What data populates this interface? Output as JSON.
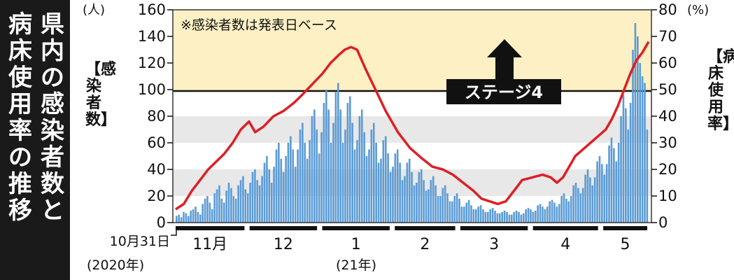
{
  "title": {
    "col1": "県内の感染者数と",
    "col2": "病床使用率の推移"
  },
  "left_axis": {
    "unit": "(人)",
    "label": "【感染者数】"
  },
  "right_axis": {
    "unit": "(%)",
    "label": "【病床使用率】"
  },
  "note": "※感染者数は発表日ベース",
  "stage_label": "ステージ4",
  "x_axis": {
    "start_label": "10月31日",
    "start_year": "(2020年)",
    "year_label": "(21年)",
    "months": [
      "11月",
      "12",
      "1",
      "2",
      "3",
      "4",
      "5"
    ]
  },
  "chart_data": {
    "type": "bar+line",
    "x": {
      "start": "2020-10-31",
      "end": "2021-05-21"
    },
    "series": [
      {
        "name": "感染者数",
        "type": "bar",
        "axis": "left",
        "color": "#5b9bd5",
        "values": [
          5,
          6,
          4,
          8,
          7,
          5,
          9,
          10,
          12,
          8,
          6,
          14,
          18,
          20,
          15,
          10,
          22,
          25,
          28,
          18,
          15,
          24,
          30,
          26,
          20,
          18,
          28,
          32,
          35,
          25,
          22,
          30,
          38,
          40,
          32,
          28,
          35,
          45,
          50,
          40,
          30,
          42,
          55,
          60,
          48,
          38,
          50,
          60,
          65,
          55,
          42,
          55,
          70,
          75,
          60,
          48,
          62,
          80,
          85,
          70,
          52,
          68,
          90,
          100,
          85,
          60,
          75,
          98,
          105,
          85,
          60,
          70,
          90,
          95,
          75,
          55,
          62,
          80,
          85,
          68,
          50,
          55,
          70,
          75,
          60,
          45,
          48,
          62,
          65,
          52,
          38,
          42,
          52,
          55,
          45,
          32,
          35,
          45,
          48,
          38,
          28,
          30,
          38,
          40,
          32,
          24,
          25,
          32,
          35,
          28,
          20,
          20,
          26,
          28,
          22,
          16,
          16,
          20,
          22,
          18,
          12,
          12,
          15,
          17,
          13,
          10,
          10,
          12,
          13,
          10,
          8,
          8,
          10,
          11,
          9,
          7,
          7,
          8,
          9,
          8,
          6,
          6,
          8,
          9,
          8,
          6,
          7,
          10,
          11,
          10,
          8,
          9,
          13,
          14,
          12,
          10,
          12,
          16,
          17,
          15,
          12,
          14,
          20,
          22,
          18,
          16,
          20,
          28,
          30,
          26,
          22,
          26,
          36,
          40,
          34,
          28,
          34,
          46,
          50,
          44,
          36,
          44,
          58,
          64,
          56,
          46,
          60,
          80,
          96,
          86,
          70,
          90,
          130,
          150,
          140,
          120,
          110,
          105,
          70
        ]
      },
      {
        "name": "病床使用率",
        "type": "line",
        "axis": "right",
        "color": "#dd1f26",
        "values": [
          [
            0,
            5
          ],
          [
            8,
            7
          ],
          [
            16,
            12
          ],
          [
            24,
            16
          ],
          [
            32,
            20
          ],
          [
            40,
            23
          ],
          [
            48,
            26
          ],
          [
            56,
            30
          ],
          [
            64,
            35
          ],
          [
            72,
            38
          ],
          [
            78,
            34
          ],
          [
            86,
            36
          ],
          [
            96,
            40
          ],
          [
            106,
            42
          ],
          [
            116,
            45
          ],
          [
            124,
            48
          ],
          [
            134,
            52
          ],
          [
            144,
            56
          ],
          [
            152,
            60
          ],
          [
            160,
            63
          ],
          [
            166,
            65
          ],
          [
            172,
            66
          ],
          [
            178,
            65
          ],
          [
            186,
            58
          ],
          [
            196,
            50
          ],
          [
            206,
            42
          ],
          [
            218,
            34
          ],
          [
            230,
            28
          ],
          [
            242,
            24
          ],
          [
            252,
            21
          ],
          [
            262,
            20
          ],
          [
            272,
            18
          ],
          [
            282,
            15
          ],
          [
            292,
            12
          ],
          [
            300,
            9
          ],
          [
            308,
            8
          ],
          [
            316,
            7
          ],
          [
            324,
            8
          ],
          [
            332,
            12
          ],
          [
            340,
            16
          ],
          [
            350,
            17
          ],
          [
            360,
            18
          ],
          [
            368,
            17
          ],
          [
            374,
            15
          ],
          [
            380,
            17
          ],
          [
            386,
            21
          ],
          [
            392,
            25
          ],
          [
            398,
            27
          ],
          [
            404,
            29
          ],
          [
            410,
            31
          ],
          [
            416,
            33
          ],
          [
            422,
            35
          ],
          [
            428,
            39
          ],
          [
            434,
            44
          ],
          [
            440,
            50
          ],
          [
            446,
            56
          ],
          [
            452,
            61
          ],
          [
            458,
            64
          ],
          [
            464,
            68
          ]
        ]
      }
    ],
    "left_ylim": [
      0,
      160
    ],
    "right_ylim": [
      0,
      80
    ],
    "left_ticks": [
      0,
      20,
      40,
      60,
      80,
      100,
      120,
      140,
      160
    ],
    "right_ticks": [
      0,
      10,
      20,
      30,
      40,
      50,
      60,
      70,
      80
    ],
    "threshold": {
      "value": 50,
      "axis": "right"
    },
    "grid": "bands"
  }
}
